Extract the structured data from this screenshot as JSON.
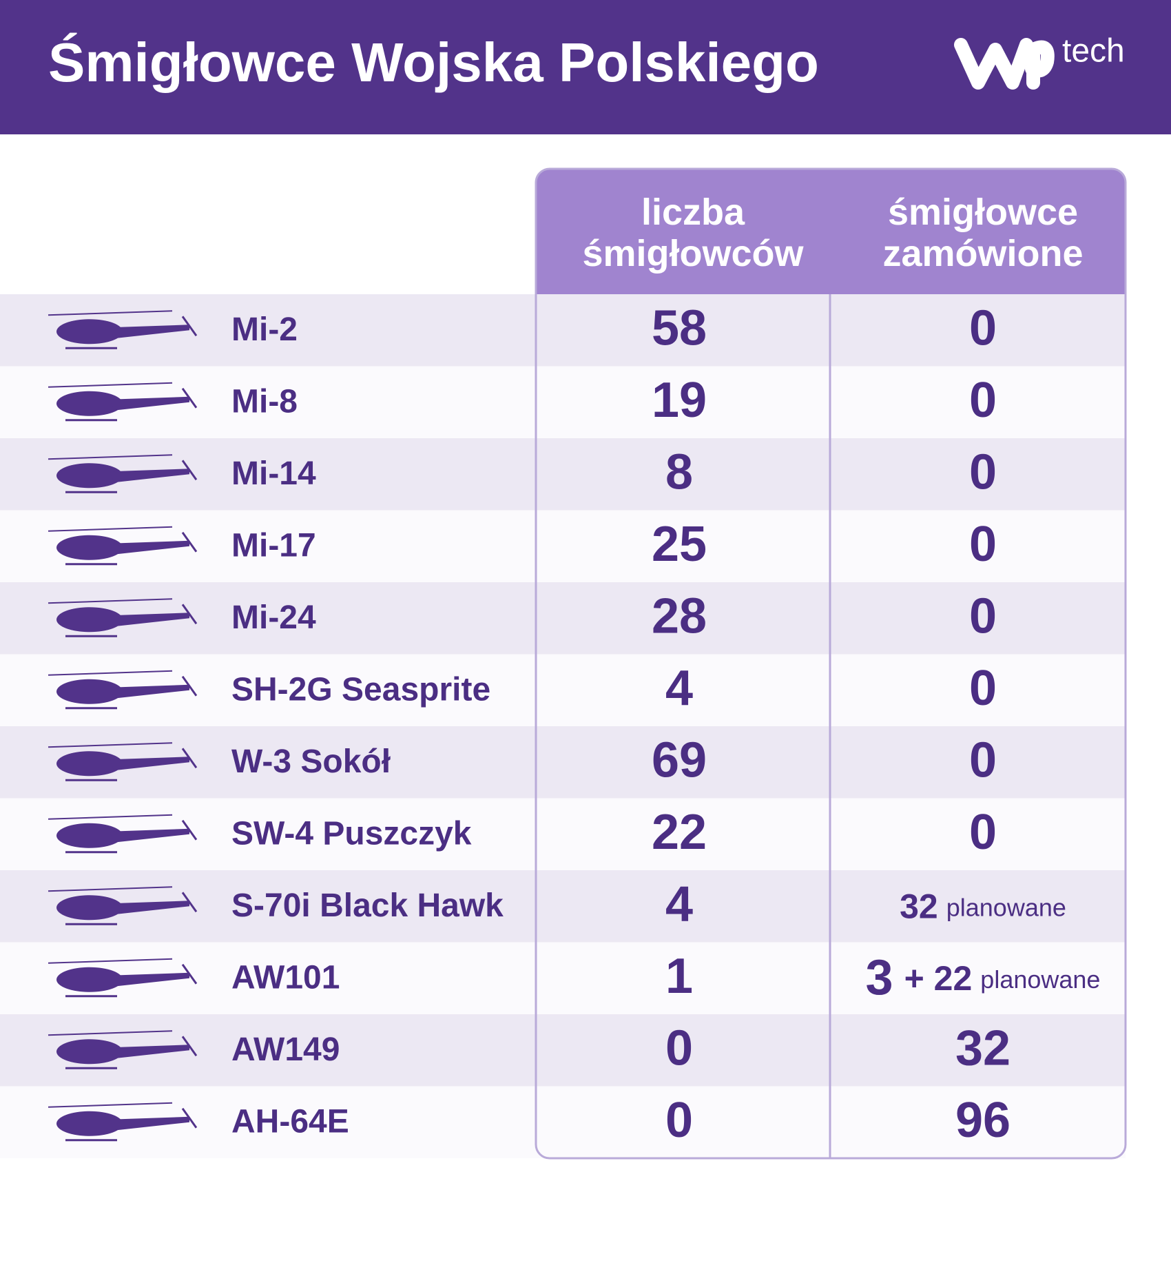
{
  "header": {
    "title": "Śmigłowce Wojska Polskiego",
    "logo_text": "tech"
  },
  "table": {
    "columns": [
      "liczba\nśmigłowców",
      "śmigłowce\nzamówione"
    ],
    "rows": [
      {
        "name": "Mi-2",
        "count": 58,
        "ordered": 0
      },
      {
        "name": "Mi-8",
        "count": 19,
        "ordered": 0
      },
      {
        "name": "Mi-14",
        "count": 8,
        "ordered": 0
      },
      {
        "name": "Mi-17",
        "count": 25,
        "ordered": 0
      },
      {
        "name": "Mi-24",
        "count": 28,
        "ordered": 0
      },
      {
        "name": "SH-2G Seasprite",
        "count": 4,
        "ordered": 0
      },
      {
        "name": "W-3 Sokół",
        "count": 69,
        "ordered": 0
      },
      {
        "name": "SW-4 Puszczyk",
        "count": 22,
        "ordered": 0
      },
      {
        "name": "S-70i Black Hawk",
        "count": 4,
        "ordered": 32,
        "note": "planowane"
      },
      {
        "name": "AW101",
        "count": 1,
        "ordered": 3,
        "extra": "+ 22",
        "note": "planowane"
      },
      {
        "name": "AW149",
        "count": 0,
        "ordered": 32
      },
      {
        "name": "AH-64E",
        "count": 0,
        "ordered": 96
      }
    ]
  }
}
